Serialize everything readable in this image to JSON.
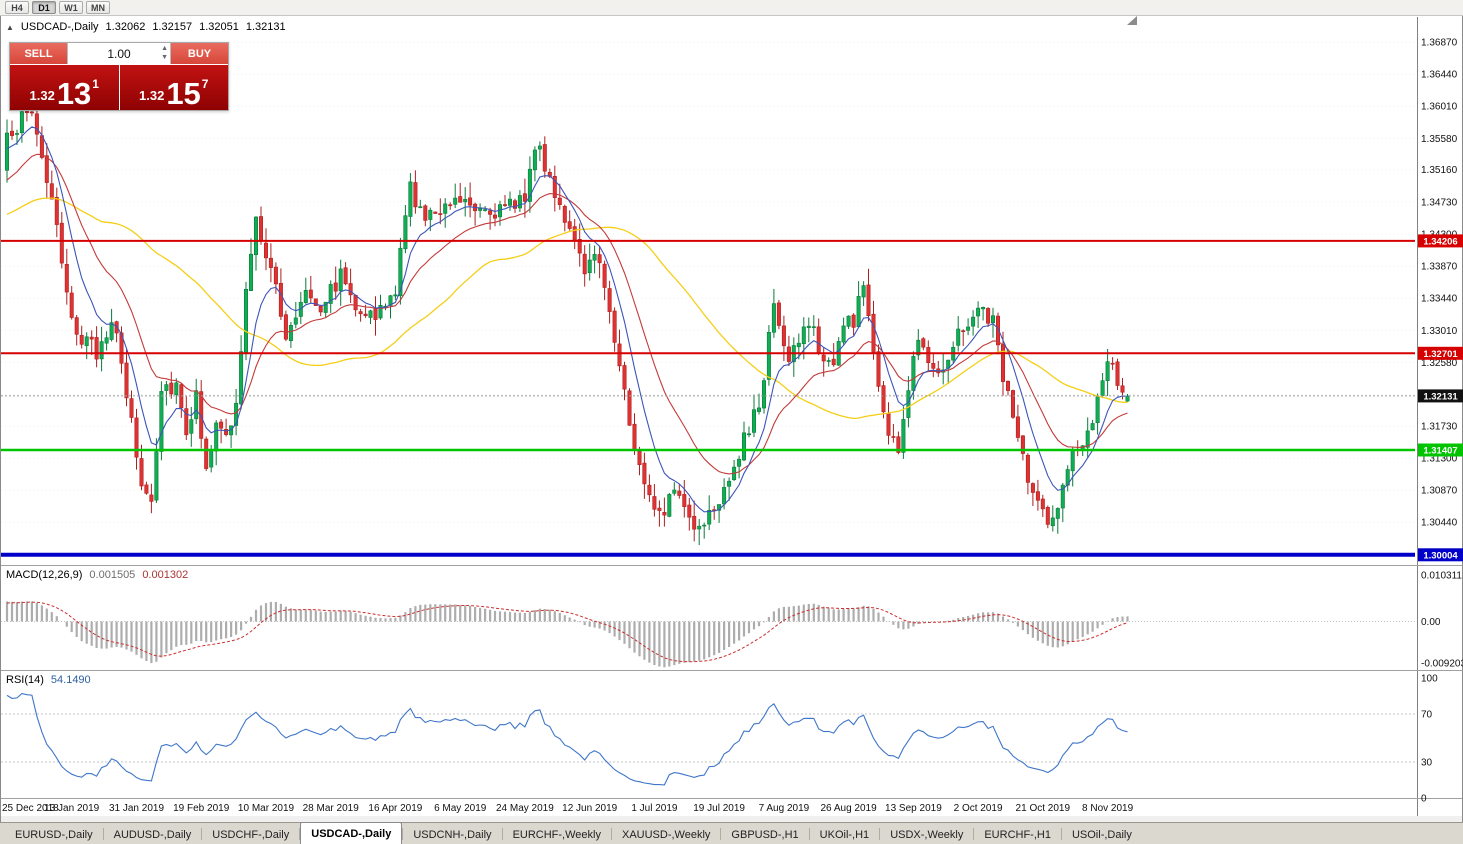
{
  "toolbar": {
    "buttons": [
      {
        "label": "H4",
        "active": false
      },
      {
        "label": "D1",
        "active": true
      },
      {
        "label": "W1",
        "active": false
      },
      {
        "label": "MN",
        "active": false
      }
    ]
  },
  "chart_header": {
    "symbol": "USDCAD-,Daily",
    "open": "1.32062",
    "high": "1.32157",
    "low": "1.32051",
    "close": "1.32131"
  },
  "trade_panel": {
    "sell_label": "SELL",
    "buy_label": "BUY",
    "volume": "1.00",
    "sell_price": {
      "prefix": "1.32",
      "pips": "13",
      "sup": "1"
    },
    "buy_price": {
      "prefix": "1.32",
      "pips": "15",
      "sup": "7"
    }
  },
  "tabs": {
    "items": [
      {
        "label": "EURUSD-,Daily",
        "active": false
      },
      {
        "label": "AUDUSD-,Daily",
        "active": false
      },
      {
        "label": "USDCHF-,Daily",
        "active": false
      },
      {
        "label": "USDCAD-,Daily",
        "active": true
      },
      {
        "label": "USDCNH-,Daily",
        "active": false
      },
      {
        "label": "EURCHF-,Weekly",
        "active": false
      },
      {
        "label": "XAUUSD-,Weekly",
        "active": false
      },
      {
        "label": "GBPUSD-,H1",
        "active": false
      },
      {
        "label": "UKOil-,H1",
        "active": false
      },
      {
        "label": "USDX-,Weekly",
        "active": false
      },
      {
        "label": "EURCHF-,H1",
        "active": false
      },
      {
        "label": "USOil-,Daily",
        "active": false
      }
    ]
  },
  "chart_data": {
    "type": "candlestick",
    "title": "USDCAD-,Daily",
    "bars": 226,
    "price_ticks": [
      "1.36870",
      "1.36440",
      "1.36010",
      "1.35580",
      "1.35160",
      "1.34730",
      "1.34300",
      "1.33870",
      "1.33440",
      "1.33010",
      "1.32580",
      "1.32150",
      "1.31730",
      "1.31300",
      "1.30870",
      "1.30440",
      "1.30010"
    ],
    "time_labels": [
      "25 Dec 2018",
      "13 Jan 2019",
      "31 Jan 2019",
      "19 Feb 2019",
      "10 Mar 2019",
      "28 Mar 2019",
      "16 Apr 2019",
      "6 May 2019",
      "24 May 2019",
      "12 Jun 2019",
      "1 Jul 2019",
      "19 Jul 2019",
      "7 Aug 2019",
      "26 Aug 2019",
      "13 Sep 2019",
      "2 Oct 2019",
      "21 Oct 2019",
      "8 Nov 2019"
    ],
    "label_every_bars": 13,
    "last_ohlc": {
      "open": 1.32062,
      "high": 1.32157,
      "low": 1.32051,
      "close": 1.32131
    },
    "current_price": {
      "label": "1.32131",
      "value": 1.32131,
      "color": "#111111"
    },
    "hlines": [
      {
        "label": "1.34206",
        "price": 1.34206,
        "color": "#D60000",
        "width": 2
      },
      {
        "label": "1.32701",
        "price": 1.32701,
        "color": "#D60000",
        "width": 2
      },
      {
        "label": "1.31407",
        "price": 1.31407,
        "color": "#00C400",
        "width": 2.5
      },
      {
        "label": "1.30004",
        "price": 1.30004,
        "color": "#0000C8",
        "width": 4
      }
    ],
    "candle_colors": {
      "up_fill": "#0FAE54",
      "up_stroke": "#0A7A3A",
      "down_fill": "#E03232",
      "down_stroke": "#AE1F1F"
    },
    "moving_averages": [
      {
        "name": "slow",
        "type": "sma",
        "period": 50,
        "color": "#F5CE17",
        "width": 1.3
      },
      {
        "name": "medium",
        "type": "ema",
        "period": 20,
        "color": "#C43A3A",
        "width": 1.1
      },
      {
        "name": "fast",
        "type": "ema",
        "period": 8,
        "color": "#3C55B8",
        "width": 1.1
      }
    ],
    "close_waypoints": [
      [
        0,
        1.3565
      ],
      [
        5,
        1.3595
      ],
      [
        9,
        1.3475
      ],
      [
        12,
        1.334
      ],
      [
        15,
        1.329
      ],
      [
        18,
        1.327
      ],
      [
        21,
        1.332
      ],
      [
        24,
        1.3215
      ],
      [
        27,
        1.3095
      ],
      [
        29,
        1.3075
      ],
      [
        31,
        1.3225
      ],
      [
        34,
        1.323
      ],
      [
        36,
        1.317
      ],
      [
        38,
        1.321
      ],
      [
        40,
        1.3125
      ],
      [
        42,
        1.317
      ],
      [
        44,
        1.3155
      ],
      [
        46,
        1.32
      ],
      [
        48,
        1.335
      ],
      [
        50,
        1.3445
      ],
      [
        53,
        1.339
      ],
      [
        56,
        1.3285
      ],
      [
        60,
        1.336
      ],
      [
        63,
        1.3335
      ],
      [
        67,
        1.3375
      ],
      [
        70,
        1.334
      ],
      [
        74,
        1.3315
      ],
      [
        78,
        1.3355
      ],
      [
        81,
        1.3495
      ],
      [
        84,
        1.3445
      ],
      [
        88,
        1.3475
      ],
      [
        92,
        1.348
      ],
      [
        96,
        1.3465
      ],
      [
        100,
        1.346
      ],
      [
        104,
        1.3485
      ],
      [
        106,
        1.355
      ],
      [
        110,
        1.349
      ],
      [
        113,
        1.3435
      ],
      [
        116,
        1.337
      ],
      [
        118,
        1.3415
      ],
      [
        121,
        1.333
      ],
      [
        123,
        1.326
      ],
      [
        125,
        1.3175
      ],
      [
        127,
        1.3115
      ],
      [
        131,
        1.306
      ],
      [
        135,
        1.3085
      ],
      [
        138,
        1.3035
      ],
      [
        141,
        1.306
      ],
      [
        143,
        1.308
      ],
      [
        147,
        1.3135
      ],
      [
        151,
        1.32
      ],
      [
        154,
        1.3335
      ],
      [
        156,
        1.327
      ],
      [
        158,
        1.327
      ],
      [
        160,
        1.3305
      ],
      [
        162,
        1.3305
      ],
      [
        164,
        1.3255
      ],
      [
        166,
        1.3255
      ],
      [
        168,
        1.331
      ],
      [
        170,
        1.331
      ],
      [
        172,
        1.337
      ],
      [
        174,
        1.327
      ],
      [
        177,
        1.316
      ],
      [
        179,
        1.3145
      ],
      [
        183,
        1.3295
      ],
      [
        187,
        1.3245
      ],
      [
        190,
        1.3285
      ],
      [
        193,
        1.3315
      ],
      [
        196,
        1.333
      ],
      [
        198,
        1.331
      ],
      [
        202,
        1.318
      ],
      [
        206,
        1.3075
      ],
      [
        210,
        1.3045
      ],
      [
        214,
        1.3135
      ],
      [
        218,
        1.3165
      ],
      [
        221,
        1.327
      ],
      [
        223,
        1.324
      ],
      [
        225,
        1.32131
      ]
    ],
    "macd": {
      "label": "MACD(12,26,9)",
      "fast": 12,
      "slow": 26,
      "signal": 9,
      "values_text": [
        "0.001505",
        "0.001302"
      ],
      "values": [
        0.001505,
        0.001302
      ],
      "axis_labels": [
        "0.010311",
        "0.00",
        "-0.009203"
      ],
      "histogram_color": "#ADADAD",
      "signal_color": "#CC2F2F"
    },
    "rsi": {
      "label": "RSI(14)",
      "period": 14,
      "value_text": "54.1490",
      "value": 54.149,
      "axis_labels": [
        "100",
        "70",
        "30",
        "0"
      ],
      "levels": [
        70,
        30
      ],
      "color": "#3F76C9"
    }
  }
}
